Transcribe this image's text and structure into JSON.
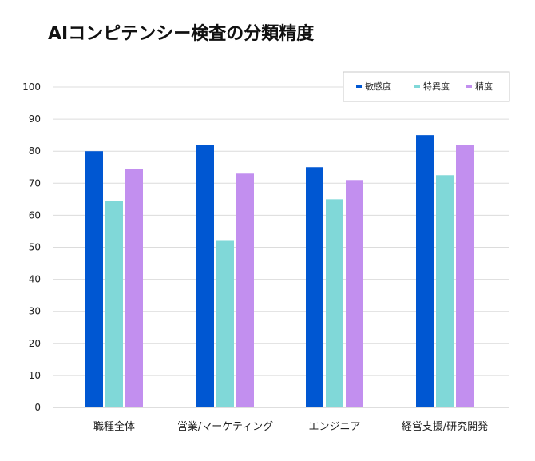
{
  "chart_data": {
    "type": "bar",
    "title": "AIコンピテンシー検査の分類精度",
    "categories": [
      "職種全体",
      "営業/マーケティング",
      "エンジニア",
      "経営支援/研究開発"
    ],
    "series": [
      {
        "name": "敏感度",
        "color": "#0057d2",
        "values": [
          80,
          82,
          75,
          85
        ]
      },
      {
        "name": "特異度",
        "color": "#80d8d8",
        "values": [
          64.5,
          52,
          65,
          72.5
        ]
      },
      {
        "name": "精度",
        "color": "#c28fef",
        "values": [
          74.5,
          73,
          71,
          82
        ]
      }
    ],
    "ylim": [
      0,
      100
    ],
    "yticks": [
      0,
      10,
      20,
      30,
      40,
      50,
      60,
      70,
      80,
      90,
      100
    ],
    "xlabel": "",
    "ylabel": "",
    "grid": true,
    "legend_position": "top-right"
  }
}
